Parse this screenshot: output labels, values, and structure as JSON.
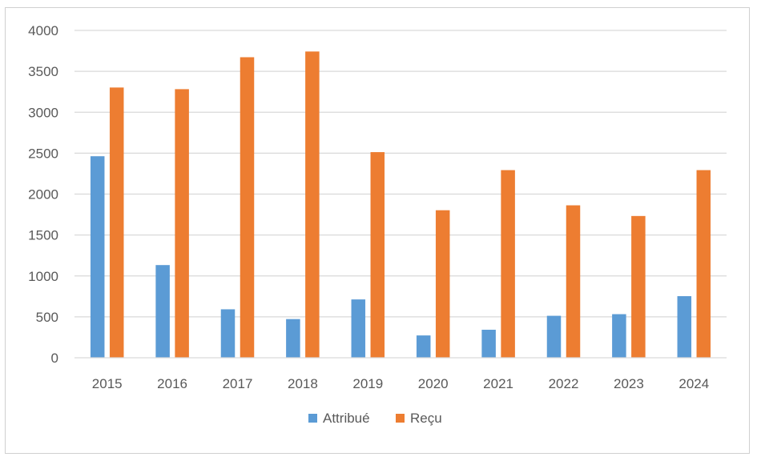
{
  "chart_data": {
    "type": "bar",
    "title": "",
    "xlabel": "",
    "ylabel": "",
    "categories": [
      "2015",
      "2016",
      "2017",
      "2018",
      "2019",
      "2020",
      "2021",
      "2022",
      "2023",
      "2024"
    ],
    "series": [
      {
        "name": "Attribué",
        "values": [
          2460,
          1130,
          590,
          470,
          710,
          270,
          340,
          510,
          530,
          750
        ],
        "color": "#5b9bd5"
      },
      {
        "name": "Reçu",
        "values": [
          3300,
          3280,
          3670,
          3740,
          2510,
          1800,
          2290,
          1860,
          1730,
          2290
        ],
        "color": "#ed7d31"
      }
    ],
    "ylim": [
      0,
      4000
    ],
    "yticks": [
      "0",
      "500",
      "1000",
      "1500",
      "2000",
      "2500",
      "3000",
      "3500",
      "4000"
    ],
    "grid": true,
    "legend": "bottom-center",
    "colors": {
      "grid": "#d9d9d9",
      "text": "#595959",
      "border": "#d0d0d0"
    }
  }
}
